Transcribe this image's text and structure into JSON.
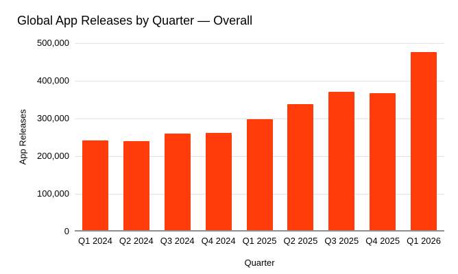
{
  "chart_data": {
    "type": "bar",
    "title": "Global App Releases by Quarter — Overall",
    "xlabel": "Quarter",
    "ylabel": "App Releases",
    "categories": [
      "Q1 2024",
      "Q2 2024",
      "Q3 2024",
      "Q4 2024",
      "Q1 2025",
      "Q2 2025",
      "Q3 2025",
      "Q4 2025",
      "Q1 2026"
    ],
    "values": [
      238000,
      236000,
      256000,
      258000,
      294000,
      335000,
      367000,
      363000,
      472000
    ],
    "ylim": [
      0,
      500000
    ],
    "ytick_values": [
      0,
      100000,
      200000,
      300000,
      400000,
      500000
    ],
    "ytick_labels": [
      "0",
      "100,000",
      "200,000",
      "300,000",
      "400,000",
      "500,000"
    ],
    "grid": "horizontal",
    "legend": "none",
    "colors": {
      "bar": "#FF3C0A",
      "gridline": "#e3e3e3",
      "axis_line": "#8e8e8e",
      "text": "#000000",
      "background": "#ffffff"
    }
  }
}
